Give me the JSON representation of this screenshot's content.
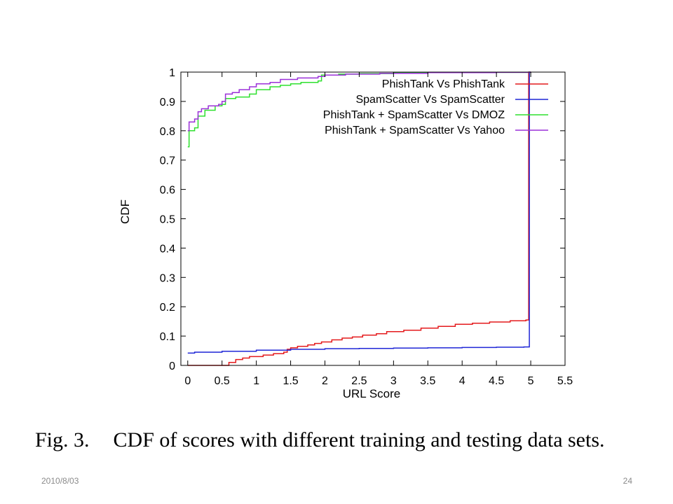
{
  "caption": {
    "fig": "Fig. 3.",
    "text": "CDF of scores with different training and testing data sets."
  },
  "footer": {
    "date": "2010/8/03",
    "page": "24"
  },
  "chart_data": {
    "type": "line",
    "step": true,
    "xlabel": "URL Score",
    "ylabel": "CDF",
    "xlim": [
      -0.1,
      5.5
    ],
    "ylim": [
      0,
      1
    ],
    "xticks": [
      "0",
      "0.5",
      "1",
      "1.5",
      "2",
      "2.5",
      "3",
      "3.5",
      "4",
      "4.5",
      "5",
      "5.5"
    ],
    "yticks": [
      "0",
      "0.1",
      "0.2",
      "0.3",
      "0.4",
      "0.5",
      "0.6",
      "0.7",
      "0.8",
      "0.9",
      "1"
    ],
    "grid": false,
    "legend_position": "top-right",
    "series": [
      {
        "name": "PhishTank Vs PhishTank",
        "color": "#e41a1c",
        "points": [
          [
            0,
            0
          ],
          [
            0.5,
            0
          ],
          [
            0.6,
            0.01
          ],
          [
            0.7,
            0.02
          ],
          [
            0.8,
            0.025
          ],
          [
            0.9,
            0.03
          ],
          [
            1.0,
            0.03
          ],
          [
            1.1,
            0.035
          ],
          [
            1.25,
            0.04
          ],
          [
            1.4,
            0.045
          ],
          [
            1.45,
            0.055
          ],
          [
            1.5,
            0.06
          ],
          [
            1.6,
            0.065
          ],
          [
            1.75,
            0.07
          ],
          [
            1.85,
            0.075
          ],
          [
            1.95,
            0.08
          ],
          [
            2.1,
            0.087
          ],
          [
            2.25,
            0.093
          ],
          [
            2.4,
            0.097
          ],
          [
            2.55,
            0.103
          ],
          [
            2.75,
            0.108
          ],
          [
            2.9,
            0.115
          ],
          [
            3.15,
            0.12
          ],
          [
            3.4,
            0.127
          ],
          [
            3.65,
            0.133
          ],
          [
            3.9,
            0.14
          ],
          [
            4.15,
            0.144
          ],
          [
            4.4,
            0.148
          ],
          [
            4.7,
            0.152
          ],
          [
            4.93,
            0.155
          ],
          [
            4.95,
            0.155
          ],
          [
            4.97,
            1.0
          ],
          [
            5.0,
            1.0
          ]
        ]
      },
      {
        "name": "SpamScatter Vs SpamScatter",
        "color": "#1f26d6",
        "points": [
          [
            0,
            0.042
          ],
          [
            0.1,
            0.045
          ],
          [
            0.5,
            0.048
          ],
          [
            1.0,
            0.052
          ],
          [
            1.5,
            0.055
          ],
          [
            2.0,
            0.057
          ],
          [
            2.5,
            0.058
          ],
          [
            3.0,
            0.059
          ],
          [
            3.5,
            0.06
          ],
          [
            4.0,
            0.061
          ],
          [
            4.5,
            0.062
          ],
          [
            4.9,
            0.063
          ],
          [
            4.92,
            0.063
          ],
          [
            4.98,
            1.0
          ],
          [
            5.0,
            1.0
          ]
        ]
      },
      {
        "name": "PhishTank + SpamScatter Vs DMOZ",
        "color": "#2ee02e",
        "points": [
          [
            0,
            0.745
          ],
          [
            0.02,
            0.8
          ],
          [
            0.1,
            0.81
          ],
          [
            0.15,
            0.85
          ],
          [
            0.25,
            0.87
          ],
          [
            0.4,
            0.885
          ],
          [
            0.5,
            0.89
          ],
          [
            0.55,
            0.91
          ],
          [
            0.7,
            0.915
          ],
          [
            0.9,
            0.925
          ],
          [
            1.0,
            0.94
          ],
          [
            1.2,
            0.95
          ],
          [
            1.35,
            0.955
          ],
          [
            1.5,
            0.96
          ],
          [
            1.65,
            0.965
          ],
          [
            1.9,
            0.97
          ],
          [
            1.95,
            0.99
          ],
          [
            2.2,
            0.993
          ],
          [
            2.5,
            0.995
          ],
          [
            3.0,
            0.997
          ],
          [
            3.5,
            0.998
          ],
          [
            4.0,
            0.999
          ],
          [
            5.0,
            1.0
          ]
        ]
      },
      {
        "name": "PhishTank + SpamScatter Vs Yahoo",
        "color": "#9b30d9",
        "points": [
          [
            0,
            0.8
          ],
          [
            0.02,
            0.83
          ],
          [
            0.1,
            0.84
          ],
          [
            0.15,
            0.865
          ],
          [
            0.2,
            0.875
          ],
          [
            0.3,
            0.885
          ],
          [
            0.45,
            0.89
          ],
          [
            0.5,
            0.9
          ],
          [
            0.55,
            0.925
          ],
          [
            0.65,
            0.93
          ],
          [
            0.75,
            0.94
          ],
          [
            0.9,
            0.95
          ],
          [
            1.0,
            0.96
          ],
          [
            1.2,
            0.965
          ],
          [
            1.35,
            0.975
          ],
          [
            1.6,
            0.98
          ],
          [
            1.9,
            0.985
          ],
          [
            2.0,
            0.99
          ],
          [
            2.3,
            0.993
          ],
          [
            2.8,
            0.996
          ],
          [
            3.5,
            0.998
          ],
          [
            4.5,
            0.999
          ],
          [
            5.0,
            1.0
          ]
        ]
      }
    ]
  }
}
